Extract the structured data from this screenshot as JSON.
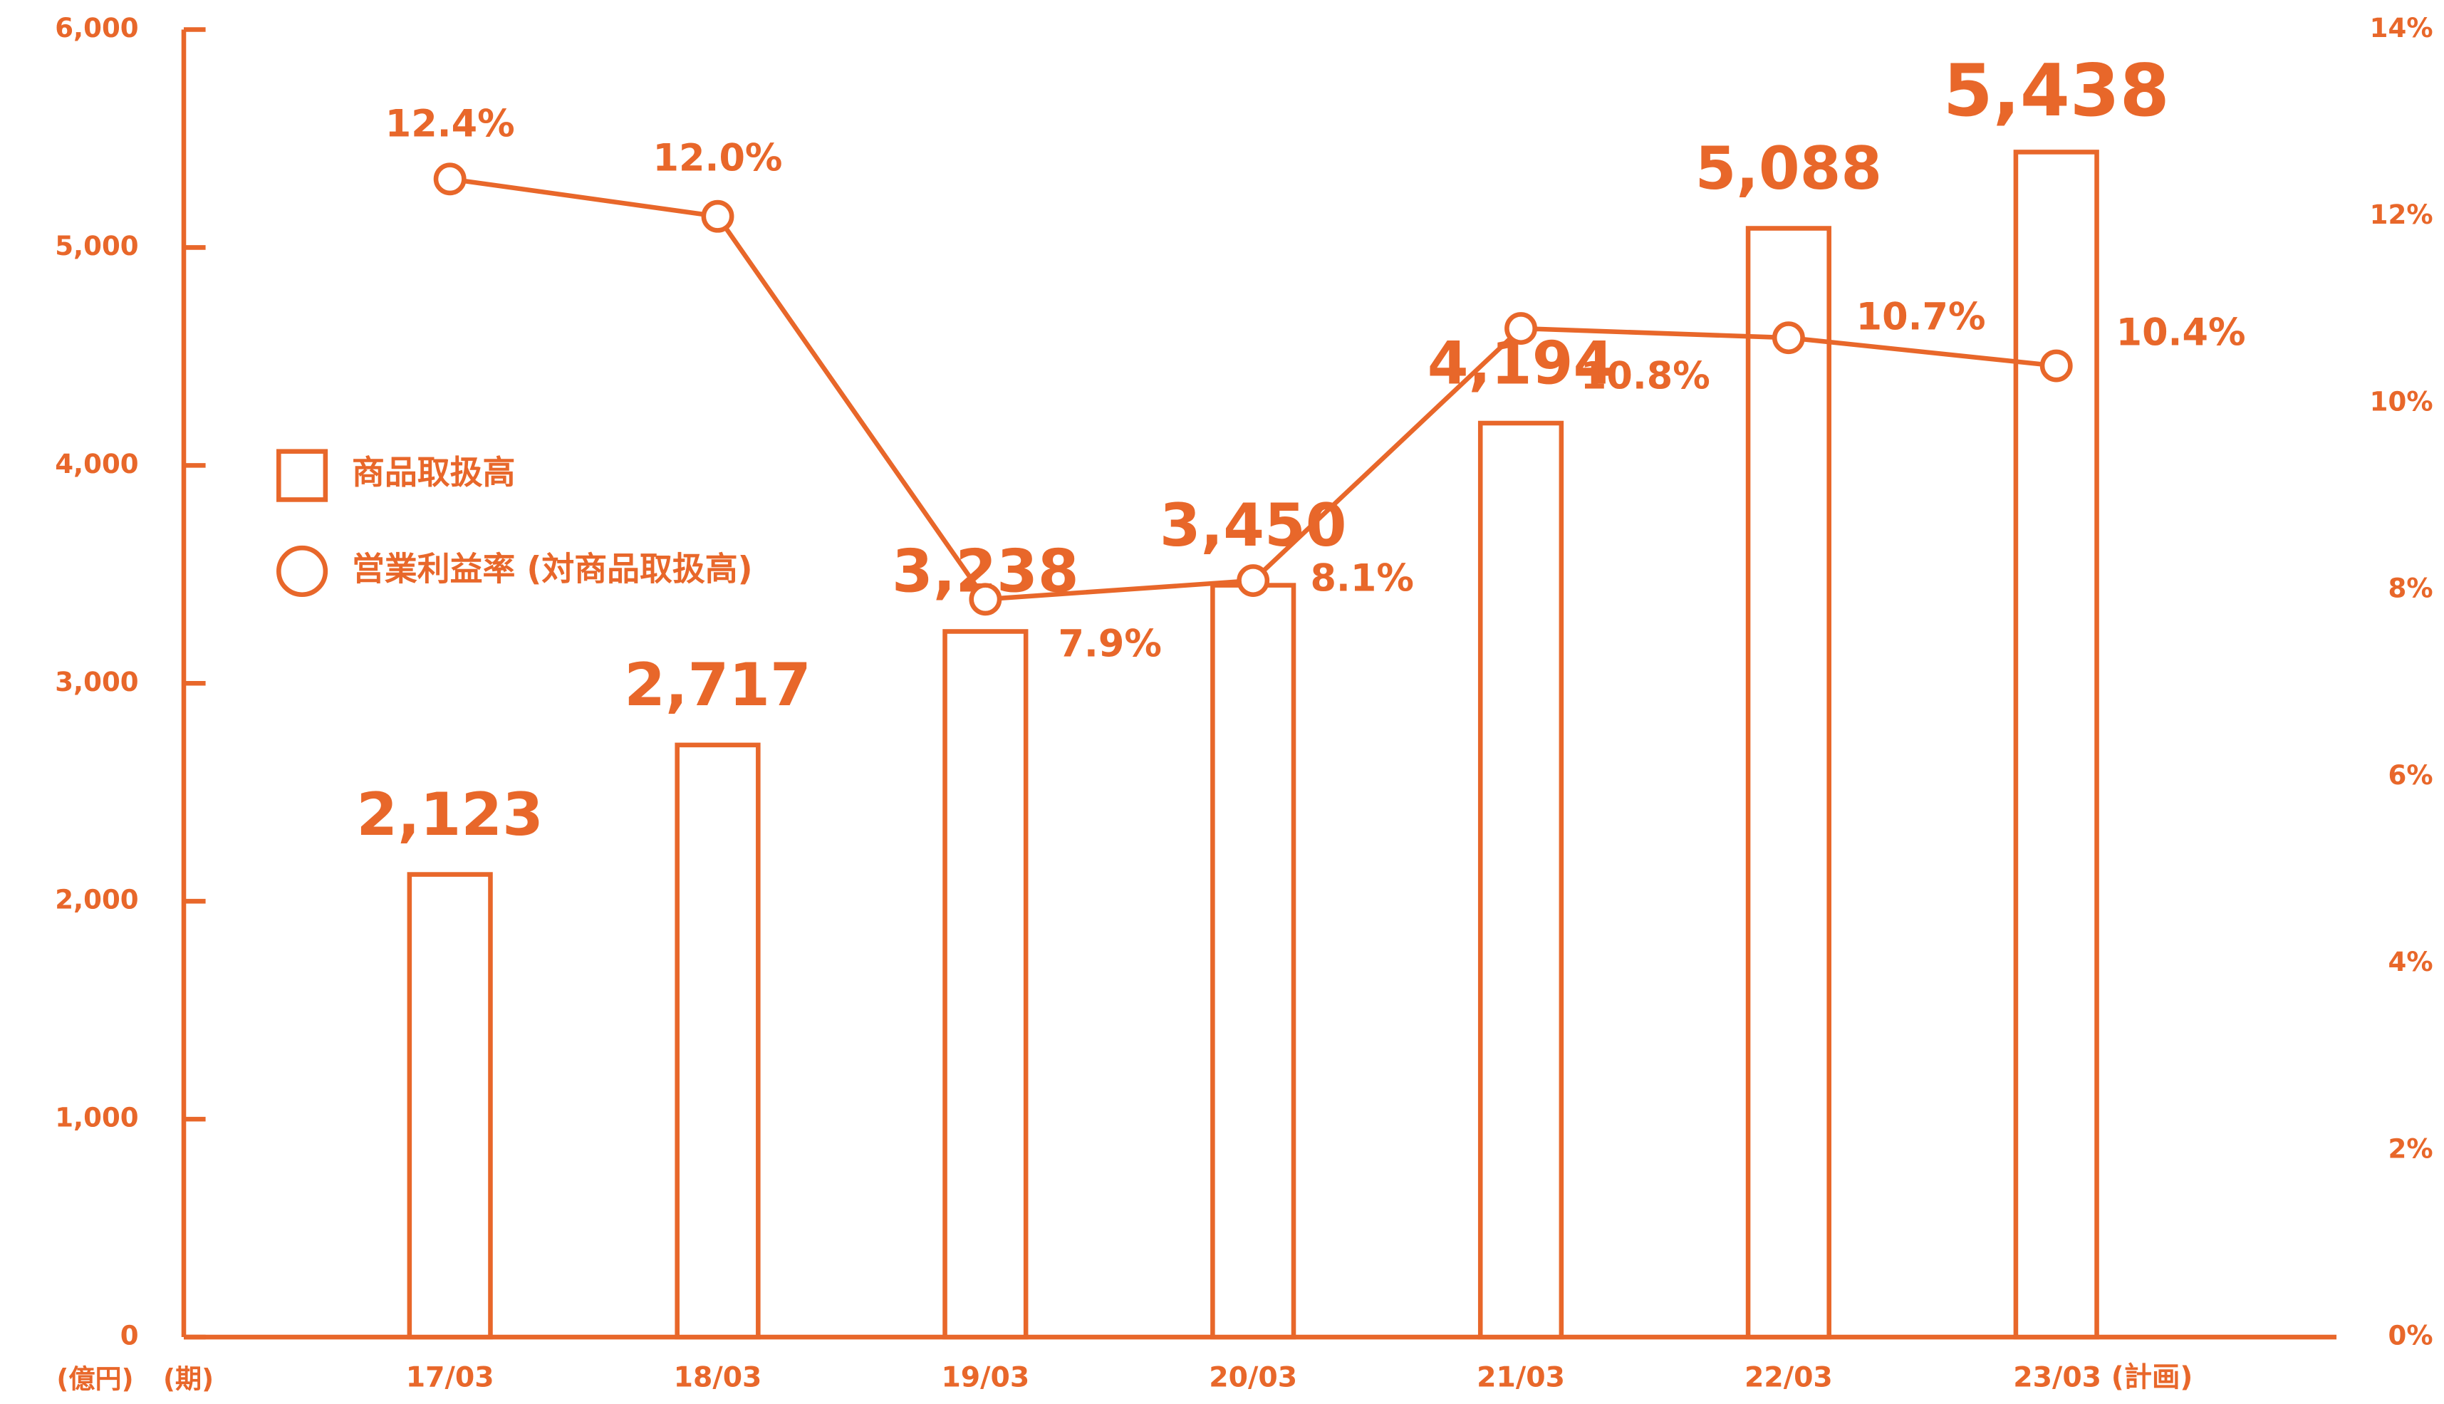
{
  "chart_data": {
    "type": "bar",
    "categories": [
      "17/03",
      "18/03",
      "19/03",
      "20/03",
      "21/03",
      "22/03",
      "23/03 (計画)"
    ],
    "series": [
      {
        "name": "商品取扱高",
        "type": "bar",
        "color": "#e8672a",
        "values": [
          2123,
          2717,
          3238,
          3450,
          4194,
          5088,
          5438
        ],
        "value_labels": [
          "2,123",
          "2,717",
          "3,238",
          "3,450",
          "4,194",
          "5,088",
          "5,438"
        ]
      },
      {
        "name": "営業利益率 (対商品取扱高)",
        "type": "line",
        "axis": "y2",
        "color": "#e8672a",
        "values": [
          12.4,
          12.0,
          7.9,
          8.1,
          10.8,
          10.7,
          10.4
        ],
        "value_labels": [
          "12.4%",
          "12.0%",
          "7.9%",
          "8.1%",
          "10.8%",
          "10.7%",
          "10.4%"
        ]
      }
    ],
    "ylim": [
      0,
      6000
    ],
    "yticks": [
      0,
      {
        "value": 1000,
        "label": "1,000"
      },
      {
        "value": 2000,
        "label": "2,000"
      },
      {
        "value": 3000,
        "label": "3,000"
      },
      {
        "value": 4000,
        "label": "4,000"
      },
      {
        "value": 5000,
        "label": "5,000"
      },
      {
        "value": 6000,
        "label": "6,000"
      }
    ],
    "y2lim": [
      0,
      14
    ],
    "y2ticks": [
      {
        "value": 0,
        "label": "0%"
      },
      {
        "value": 2,
        "label": "2%"
      },
      {
        "value": 4,
        "label": "4%"
      },
      {
        "value": 6,
        "label": "6%"
      },
      {
        "value": 8,
        "label": "8%"
      },
      {
        "value": 10,
        "label": "10%"
      },
      {
        "value": 12,
        "label": "12%"
      },
      {
        "value": 14,
        "label": "14%"
      }
    ],
    "y_unit_label": "(億円)",
    "x_unit_label": "(期)"
  }
}
